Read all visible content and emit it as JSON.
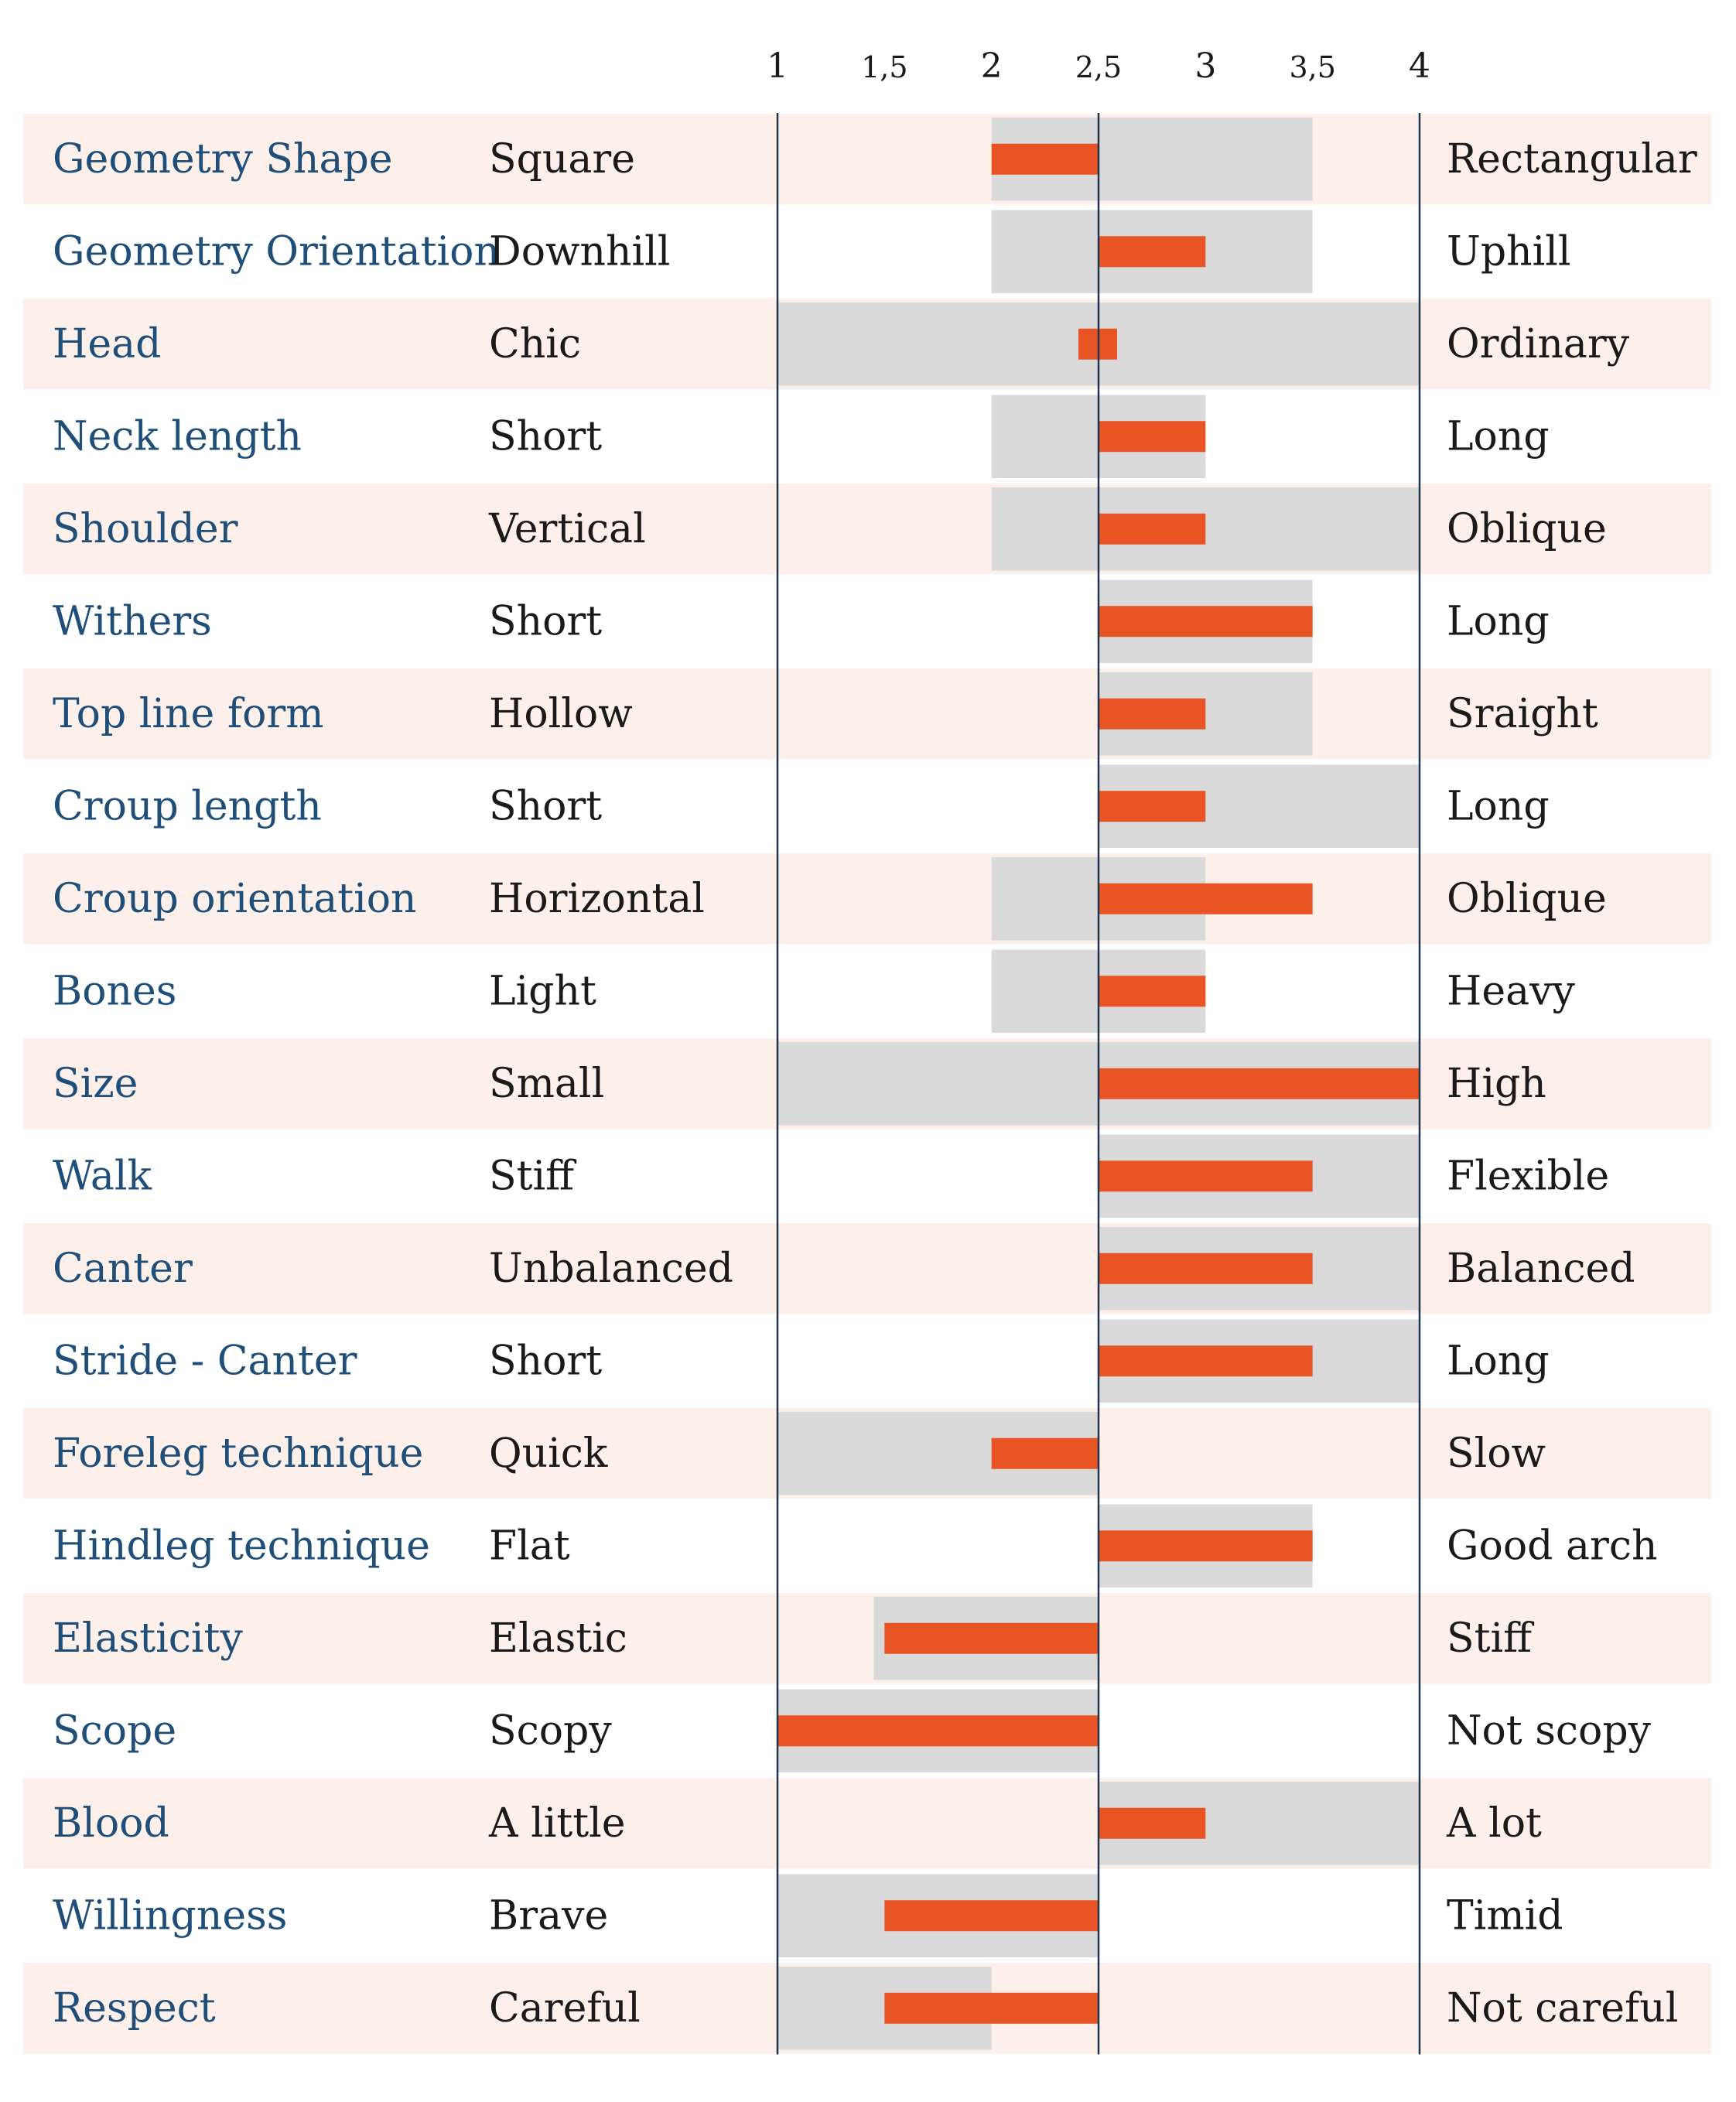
{
  "chart_data": {
    "type": "bar",
    "title": "",
    "xlabel": "",
    "ylabel": "",
    "xlim": [
      1,
      4
    ],
    "x_ticks": [
      1,
      1.5,
      2,
      2.5,
      3,
      3.5,
      4
    ],
    "x_tick_labels": [
      "1",
      "1,5",
      "2",
      "2,5",
      "3",
      "3,5",
      "4"
    ],
    "reference_value": 2.5,
    "legend": "none",
    "colors": {
      "row_shade": "#fdf0eb",
      "range_band": "#dadada",
      "value_bar": "#e85424",
      "axis_line": "#1f3550",
      "trait_text": "#1f4e79",
      "pole_text": "#1a1a1a"
    },
    "rows": [
      {
        "trait": "Geometry Shape",
        "low": "Square",
        "high": "Rectangular",
        "range": [
          2,
          3.5
        ],
        "value": 2
      },
      {
        "trait": "Geometry Orientation",
        "low": "Downhill",
        "high": "Uphill",
        "range": [
          2,
          3.5
        ],
        "value": 3
      },
      {
        "trait": "Head",
        "low": "Chic",
        "high": "Ordinary",
        "range": [
          1,
          4
        ],
        "value": 2.58
      },
      {
        "trait": "Neck length",
        "low": "Short",
        "high": "Long",
        "range": [
          2,
          3
        ],
        "value": 3
      },
      {
        "trait": "Shoulder",
        "low": "Vertical",
        "high": "Oblique",
        "range": [
          2,
          4
        ],
        "value": 3
      },
      {
        "trait": "Withers",
        "low": "Short",
        "high": "Long",
        "range": [
          2.5,
          3.5
        ],
        "value": 3.5
      },
      {
        "trait": "Top line form",
        "low": "Hollow",
        "high": "Sraight",
        "range": [
          2.5,
          3.5
        ],
        "value": 3
      },
      {
        "trait": "Croup length",
        "low": "Short",
        "high": "Long",
        "range": [
          2.5,
          4
        ],
        "value": 3
      },
      {
        "trait": "Croup orientation",
        "low": "Horizontal",
        "high": "Oblique",
        "range": [
          2,
          3
        ],
        "value": 3.5
      },
      {
        "trait": "Bones",
        "low": "Light",
        "high": "Heavy",
        "range": [
          2,
          3
        ],
        "value": 3
      },
      {
        "trait": "Size",
        "low": "Small",
        "high": "High",
        "range": [
          1,
          4
        ],
        "value": 4
      },
      {
        "trait": "Walk",
        "low": "Stiff",
        "high": "Flexible",
        "range": [
          2.5,
          4
        ],
        "value": 3.5
      },
      {
        "trait": "Canter",
        "low": "Unbalanced",
        "high": "Balanced",
        "range": [
          2.5,
          4
        ],
        "value": 3.5
      },
      {
        "trait": "Stride - Canter",
        "low": "Short",
        "high": "Long",
        "range": [
          2.5,
          4
        ],
        "value": 3.5
      },
      {
        "trait": "Foreleg technique",
        "low": "Quick",
        "high": "Slow",
        "range": [
          1,
          2.5
        ],
        "value": 2
      },
      {
        "trait": "Hindleg technique",
        "low": "Flat",
        "high": "Good arch",
        "range": [
          2.5,
          3.5
        ],
        "value": 3.5
      },
      {
        "trait": "Elasticity",
        "low": "Elastic",
        "high": "Stiff",
        "range": [
          1.45,
          2.5
        ],
        "value": 1.5
      },
      {
        "trait": "Scope",
        "low": "Scopy",
        "high": "Not scopy",
        "range": [
          1,
          2.5
        ],
        "value": 1
      },
      {
        "trait": "Blood",
        "low": "A little",
        "high": "A lot",
        "range": [
          2.5,
          4
        ],
        "value": 3
      },
      {
        "trait": "Willingness",
        "low": "Brave",
        "high": "Timid",
        "range": [
          1,
          2.5
        ],
        "value": 1.5
      },
      {
        "trait": "Respect",
        "low": "Careful",
        "high": "Not careful",
        "range": [
          1,
          2
        ],
        "value": 1.5
      }
    ]
  }
}
